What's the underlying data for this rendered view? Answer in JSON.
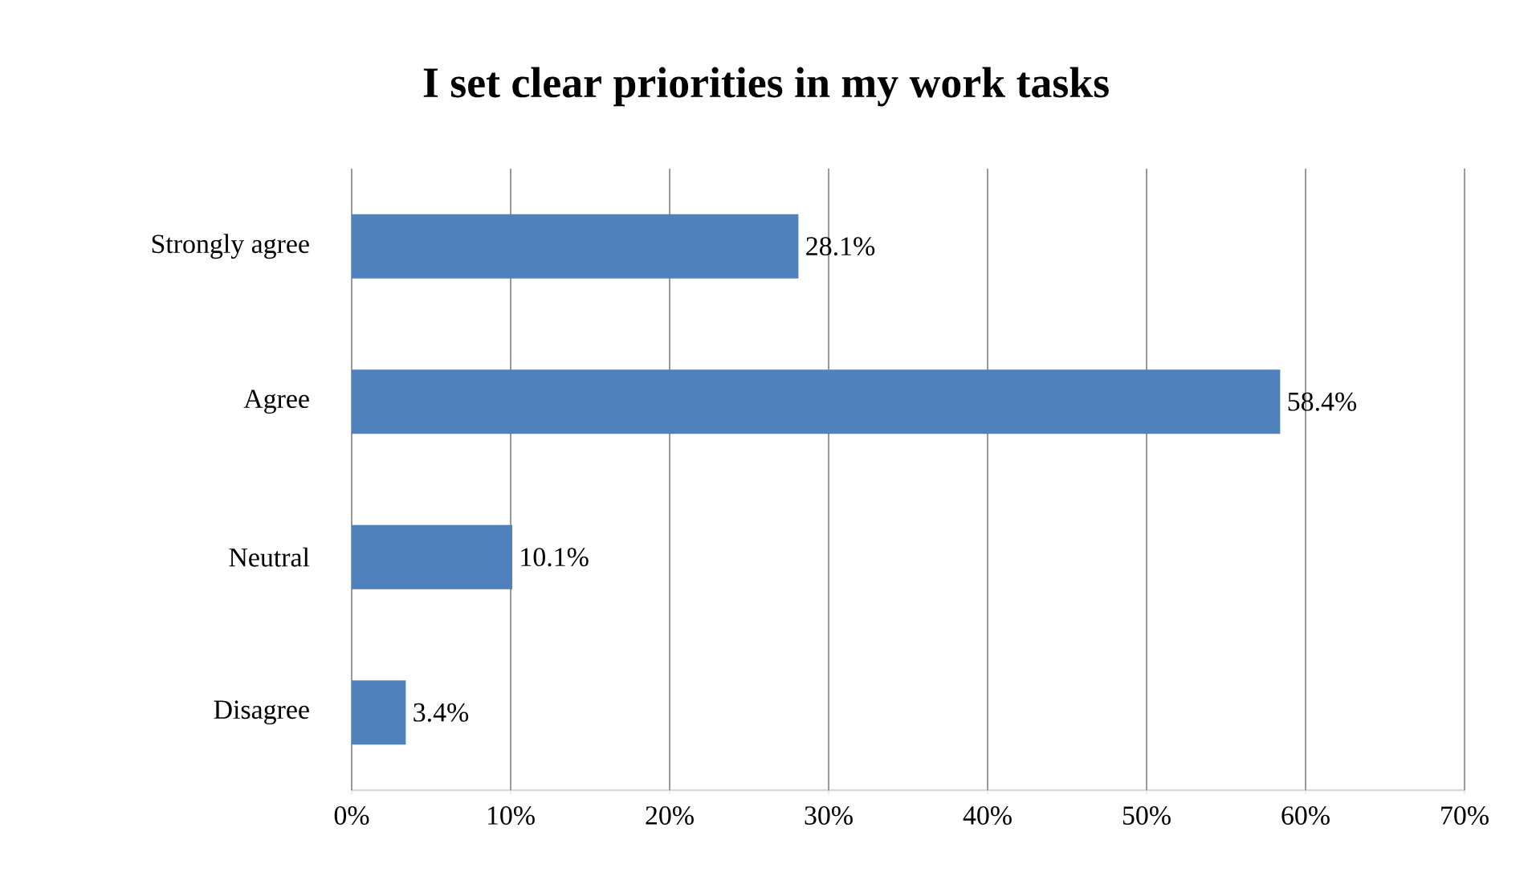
{
  "chart_data": {
    "type": "bar",
    "orientation": "horizontal",
    "title": "I set clear priorities in my work tasks",
    "categories": [
      "Strongly agree",
      "Agree",
      "Neutral",
      "Disagree"
    ],
    "values": [
      28.1,
      58.4,
      10.1,
      3.4
    ],
    "value_labels": [
      "28.1%",
      "58.4%",
      "10.1%",
      "3.4%"
    ],
    "color": "#4f81bd",
    "xlim": [
      0,
      70
    ],
    "xticks": [
      {
        "value": 0,
        "label": "0%"
      },
      {
        "value": 10,
        "label": "10%"
      },
      {
        "value": 20,
        "label": "20%"
      },
      {
        "value": 30,
        "label": "30%"
      },
      {
        "value": 40,
        "label": "40%"
      },
      {
        "value": 50,
        "label": "50%"
      },
      {
        "value": 60,
        "label": "60%"
      },
      {
        "value": 70,
        "label": "70%"
      }
    ],
    "grid": "x"
  }
}
